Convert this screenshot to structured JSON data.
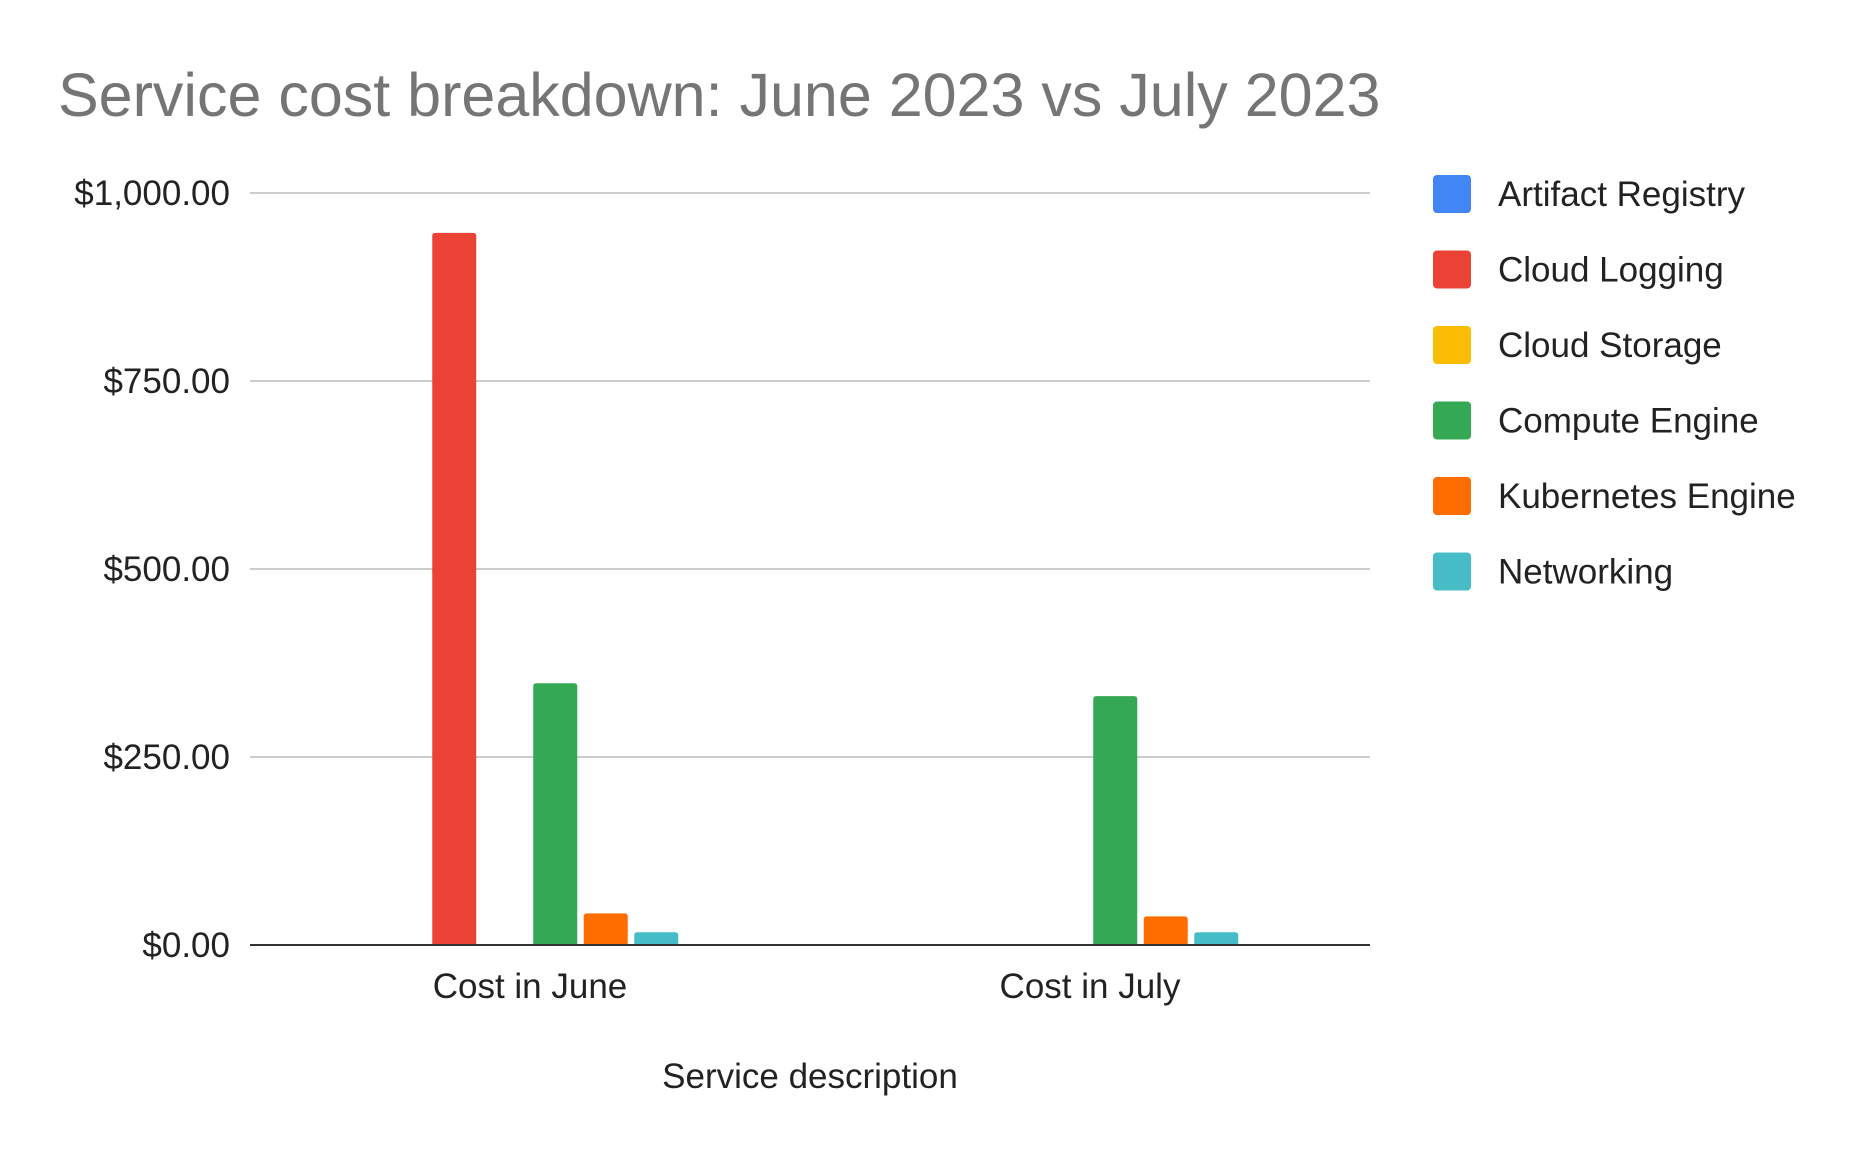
{
  "chart_data": {
    "type": "bar",
    "title": "Service cost breakdown:  June 2023 vs July 2023",
    "xlabel": "Service description",
    "ylabel": "",
    "categories": [
      "Cost in June",
      "Cost in July"
    ],
    "y_ticks": [
      "$0.00",
      "$250.00",
      "$500.00",
      "$750.00",
      "$1,000.00"
    ],
    "ylim": [
      0,
      1000
    ],
    "grid": true,
    "legend_position": "right",
    "series": [
      {
        "name": "Artifact Registry",
        "color": "#4285F4",
        "values": [
          0,
          0
        ]
      },
      {
        "name": "Cloud Logging",
        "color": "#EA4335",
        "values": [
          947,
          0
        ]
      },
      {
        "name": "Cloud Storage",
        "color": "#FBBC04",
        "values": [
          0,
          0
        ]
      },
      {
        "name": "Compute Engine",
        "color": "#34A853",
        "values": [
          348,
          331
        ]
      },
      {
        "name": "Kubernetes Engine",
        "color": "#FF6D01",
        "values": [
          42,
          38
        ]
      },
      {
        "name": "Networking",
        "color": "#46BDC6",
        "values": [
          17,
          17
        ]
      }
    ]
  }
}
